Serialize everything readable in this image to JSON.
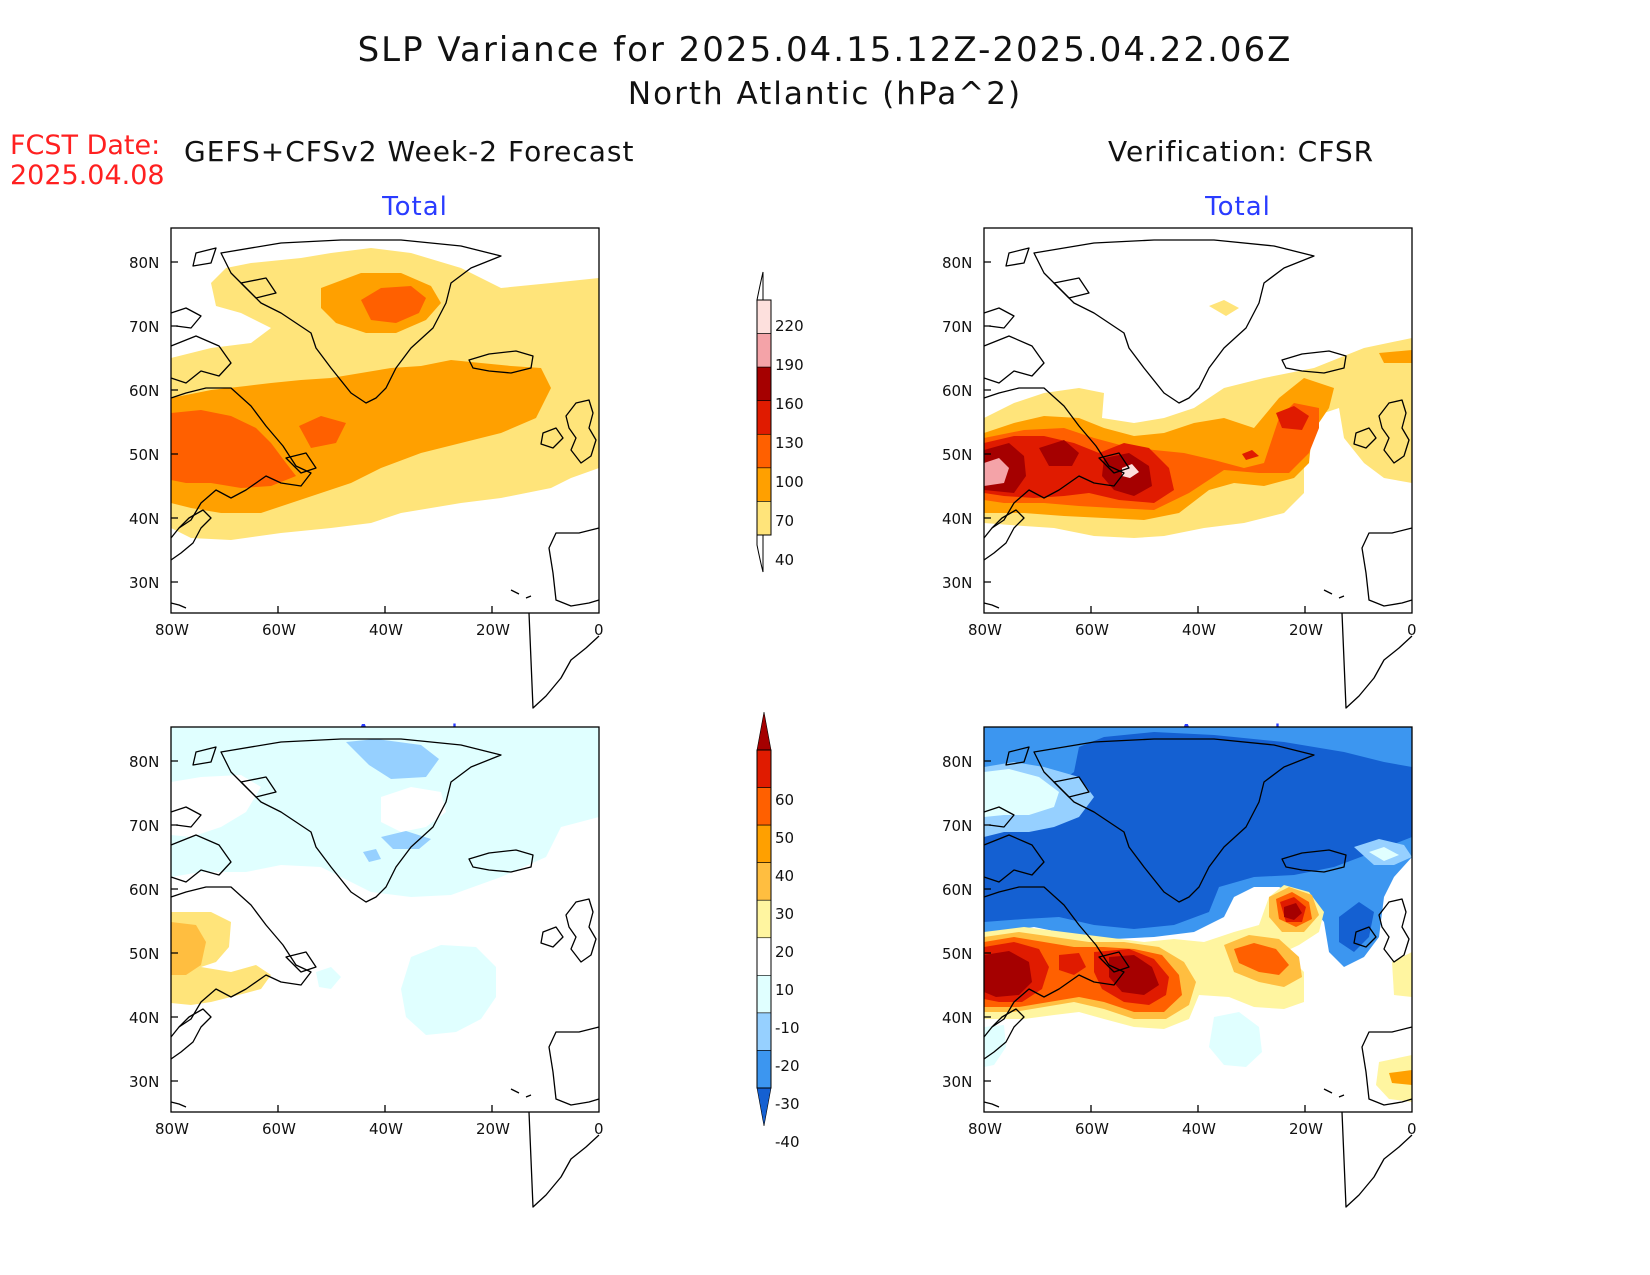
{
  "title": {
    "line1": "SLP Variance for 2025.04.15.12Z-2025.04.22.06Z",
    "line2": "North Atlantic (hPa^2)"
  },
  "fcst_date": {
    "label": "FCST Date:",
    "value": "2025.04.08"
  },
  "columns": {
    "left_heading": "GEFS+CFSv2 Week-2 Forecast",
    "right_heading": "Verification: CFSR"
  },
  "panels": {
    "top_left_title": "Total",
    "top_right_title": "Total",
    "bottom_left_title": "Anomaly",
    "bottom_right_title": "Anomaly"
  },
  "axes": {
    "lat_ticks": [
      "80N",
      "70N",
      "60N",
      "50N",
      "40N",
      "30N"
    ],
    "lon_ticks": [
      "80W",
      "60W",
      "40W",
      "20W",
      "0"
    ]
  },
  "colorbars": {
    "total": {
      "levels": [
        "220",
        "190",
        "160",
        "130",
        "100",
        "70",
        "40"
      ],
      "colors": [
        "#fde0dd",
        "#f4a3a8",
        "#a50000",
        "#e01b00",
        "#ff6000",
        "#ffa000",
        "#ffe47a"
      ]
    },
    "anomaly": {
      "levels": [
        "60",
        "50",
        "40",
        "30",
        "20",
        "10",
        "-10",
        "-20",
        "-30",
        "-40"
      ],
      "colors": [
        "#a50000",
        "#e01b00",
        "#ff6000",
        "#ffa000",
        "#ffbe40",
        "#fff5a0",
        "#ffffff",
        "#e0ffff",
        "#96d0ff",
        "#3c96f0",
        "#1460d2"
      ]
    }
  }
}
